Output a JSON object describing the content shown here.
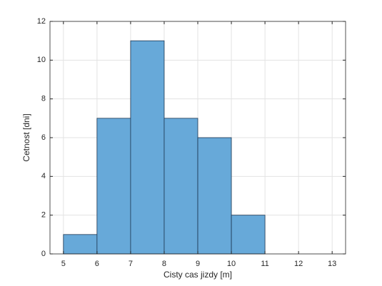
{
  "chart_data": {
    "type": "histogram",
    "x_label": "Cisty cas jizdy [m]",
    "y_label": "Cetnost [dni]",
    "bins": [
      5,
      6,
      7,
      8,
      9,
      10,
      11
    ],
    "values": [
      1,
      7,
      11,
      7,
      6,
      2
    ],
    "color": "#67a9d9",
    "edge_color": "#1c3550",
    "xlim": [
      4.6,
      13.4
    ],
    "xticks": [
      5,
      6,
      7,
      8,
      9,
      10,
      11,
      12,
      13
    ],
    "ylim": [
      0,
      12
    ],
    "yticks": [
      0,
      2,
      4,
      6,
      8,
      10,
      12
    ],
    "grid": true
  }
}
